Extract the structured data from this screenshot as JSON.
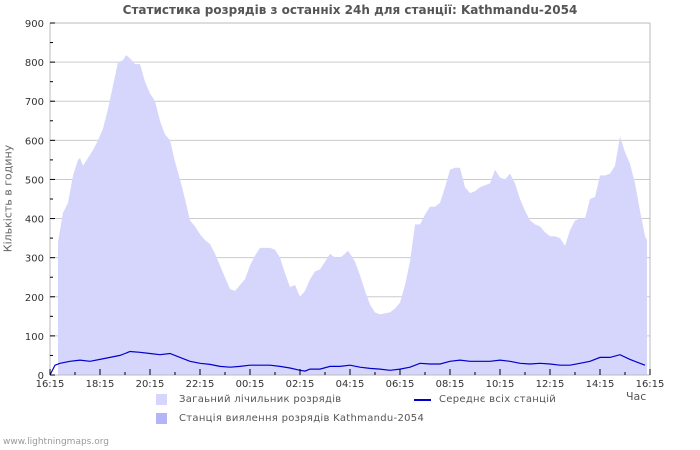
{
  "title": "Статистика розрядів з останніх 24h для станції: Kathmandu-2054",
  "y_axis_label": "Кількість в годину",
  "x_axis_unit": "Час",
  "footer": "www.lightningmaps.org",
  "legend": {
    "total": {
      "label": "Загаьний лічильник розрядів",
      "color": "#d6d6fc"
    },
    "station": {
      "label": "Станція виялення розрядів Kathmandu-2054",
      "color": "#b4b4f8"
    },
    "average": {
      "label": "Середнє всіх станцій",
      "color": "#0000cc"
    }
  },
  "colors": {
    "grid": "#cccccc",
    "axis": "#bbbbbb",
    "fill_total": "#d6d6fc",
    "line_avg": "#0000cc"
  },
  "chart_data": {
    "type": "area",
    "title": "Статистика розрядів з останніх 24h для станції: Kathmandu-2054",
    "xlabel": "Час",
    "ylabel": "Кількість в годину",
    "ylim": [
      0,
      900
    ],
    "yticks": [
      0,
      100,
      200,
      300,
      400,
      500,
      600,
      700,
      800,
      900
    ],
    "xticks": [
      "16:15",
      "18:15",
      "20:15",
      "22:15",
      "00:15",
      "02:15",
      "04:15",
      "06:15",
      "08:15",
      "10:15",
      "12:15",
      "14:15",
      "16:15"
    ],
    "x_unit_note": "x = hours elapsed since 16:15 (0–24)",
    "grid": true,
    "legend_position": "bottom",
    "series": [
      {
        "name": "Загаьний лічильник розрядів",
        "kind": "area",
        "points": [
          [
            0.32,
            340
          ],
          [
            0.52,
            415
          ],
          [
            0.72,
            440
          ],
          [
            0.92,
            510
          ],
          [
            1.12,
            550
          ],
          [
            1.2,
            555
          ],
          [
            1.32,
            535
          ],
          [
            1.52,
            555
          ],
          [
            1.72,
            575
          ],
          [
            1.92,
            600
          ],
          [
            2.12,
            630
          ],
          [
            2.32,
            680
          ],
          [
            2.52,
            740
          ],
          [
            2.72,
            800
          ],
          [
            2.92,
            805
          ],
          [
            3.04,
            818
          ],
          [
            3.2,
            810
          ],
          [
            3.4,
            795
          ],
          [
            3.6,
            795
          ],
          [
            3.8,
            750
          ],
          [
            4.0,
            720
          ],
          [
            4.2,
            700
          ],
          [
            4.4,
            650
          ],
          [
            4.6,
            615
          ],
          [
            4.8,
            600
          ],
          [
            5.0,
            545
          ],
          [
            5.2,
            500
          ],
          [
            5.4,
            450
          ],
          [
            5.6,
            395
          ],
          [
            5.8,
            380
          ],
          [
            6.0,
            360
          ],
          [
            6.2,
            345
          ],
          [
            6.4,
            335
          ],
          [
            6.6,
            310
          ],
          [
            6.8,
            280
          ],
          [
            7.0,
            250
          ],
          [
            7.2,
            220
          ],
          [
            7.4,
            215
          ],
          [
            7.6,
            230
          ],
          [
            7.8,
            245
          ],
          [
            8.0,
            280
          ],
          [
            8.2,
            305
          ],
          [
            8.4,
            325
          ],
          [
            8.6,
            325
          ],
          [
            8.8,
            325
          ],
          [
            9.0,
            320
          ],
          [
            9.2,
            300
          ],
          [
            9.4,
            260
          ],
          [
            9.6,
            225
          ],
          [
            9.8,
            230
          ],
          [
            10.0,
            200
          ],
          [
            10.2,
            215
          ],
          [
            10.4,
            245
          ],
          [
            10.6,
            265
          ],
          [
            10.8,
            270
          ],
          [
            11.0,
            290
          ],
          [
            11.2,
            310
          ],
          [
            11.4,
            300
          ],
          [
            11.6,
            300
          ],
          [
            11.8,
            310
          ],
          [
            11.92,
            318
          ],
          [
            12.2,
            290
          ],
          [
            12.4,
            255
          ],
          [
            12.6,
            215
          ],
          [
            12.8,
            180
          ],
          [
            13.0,
            160
          ],
          [
            13.2,
            155
          ],
          [
            13.4,
            158
          ],
          [
            13.6,
            160
          ],
          [
            13.8,
            170
          ],
          [
            14.0,
            185
          ],
          [
            14.2,
            230
          ],
          [
            14.4,
            290
          ],
          [
            14.6,
            385
          ],
          [
            14.8,
            385
          ],
          [
            15.0,
            410
          ],
          [
            15.2,
            430
          ],
          [
            15.4,
            430
          ],
          [
            15.6,
            440
          ],
          [
            15.8,
            480
          ],
          [
            16.0,
            525
          ],
          [
            16.2,
            530
          ],
          [
            16.4,
            530
          ],
          [
            16.6,
            480
          ],
          [
            16.8,
            465
          ],
          [
            17.0,
            470
          ],
          [
            17.2,
            480
          ],
          [
            17.4,
            485
          ],
          [
            17.6,
            490
          ],
          [
            17.8,
            525
          ],
          [
            18.0,
            505
          ],
          [
            18.2,
            500
          ],
          [
            18.4,
            515
          ],
          [
            18.6,
            490
          ],
          [
            18.8,
            450
          ],
          [
            19.0,
            420
          ],
          [
            19.2,
            395
          ],
          [
            19.4,
            385
          ],
          [
            19.6,
            380
          ],
          [
            19.8,
            365
          ],
          [
            20.0,
            355
          ],
          [
            20.2,
            355
          ],
          [
            20.4,
            350
          ],
          [
            20.6,
            330
          ],
          [
            20.8,
            370
          ],
          [
            21.0,
            395
          ],
          [
            21.2,
            400
          ],
          [
            21.4,
            400
          ],
          [
            21.6,
            450
          ],
          [
            21.8,
            455
          ],
          [
            22.0,
            510
          ],
          [
            22.2,
            510
          ],
          [
            22.4,
            515
          ],
          [
            22.6,
            535
          ],
          [
            22.8,
            610
          ],
          [
            23.0,
            570
          ],
          [
            23.2,
            540
          ],
          [
            23.4,
            490
          ],
          [
            23.6,
            420
          ],
          [
            23.8,
            355
          ],
          [
            23.88,
            345
          ]
        ]
      },
      {
        "name": "Станція виялення розрядів Kathmandu-2054",
        "kind": "area",
        "points": []
      },
      {
        "name": "Середнє всіх станцій",
        "kind": "line",
        "points": [
          [
            0,
            0
          ],
          [
            0.2,
            25
          ],
          [
            0.4,
            30
          ],
          [
            0.8,
            35
          ],
          [
            1.2,
            38
          ],
          [
            1.6,
            35
          ],
          [
            2.0,
            40
          ],
          [
            2.4,
            45
          ],
          [
            2.8,
            50
          ],
          [
            3.0,
            55
          ],
          [
            3.2,
            60
          ],
          [
            3.6,
            58
          ],
          [
            4.0,
            55
          ],
          [
            4.4,
            52
          ],
          [
            4.8,
            55
          ],
          [
            5.2,
            45
          ],
          [
            5.6,
            35
          ],
          [
            6.0,
            30
          ],
          [
            6.4,
            27
          ],
          [
            6.8,
            22
          ],
          [
            7.2,
            20
          ],
          [
            7.6,
            22
          ],
          [
            8.0,
            25
          ],
          [
            8.4,
            25
          ],
          [
            8.8,
            25
          ],
          [
            9.2,
            22
          ],
          [
            9.6,
            18
          ],
          [
            10.0,
            12
          ],
          [
            10.2,
            10
          ],
          [
            10.4,
            15
          ],
          [
            10.8,
            15
          ],
          [
            11.2,
            22
          ],
          [
            11.6,
            22
          ],
          [
            12.0,
            25
          ],
          [
            12.4,
            20
          ],
          [
            12.8,
            17
          ],
          [
            13.2,
            15
          ],
          [
            13.6,
            12
          ],
          [
            14.0,
            15
          ],
          [
            14.4,
            20
          ],
          [
            14.8,
            30
          ],
          [
            15.2,
            28
          ],
          [
            15.6,
            28
          ],
          [
            16.0,
            35
          ],
          [
            16.4,
            38
          ],
          [
            16.8,
            35
          ],
          [
            17.2,
            35
          ],
          [
            17.6,
            35
          ],
          [
            18.0,
            38
          ],
          [
            18.4,
            35
          ],
          [
            18.8,
            30
          ],
          [
            19.2,
            28
          ],
          [
            19.6,
            30
          ],
          [
            20.0,
            28
          ],
          [
            20.4,
            25
          ],
          [
            20.8,
            25
          ],
          [
            21.2,
            30
          ],
          [
            21.6,
            35
          ],
          [
            22.0,
            45
          ],
          [
            22.4,
            45
          ],
          [
            22.8,
            52
          ],
          [
            23.2,
            40
          ],
          [
            23.6,
            30
          ],
          [
            23.8,
            25
          ]
        ]
      }
    ]
  }
}
